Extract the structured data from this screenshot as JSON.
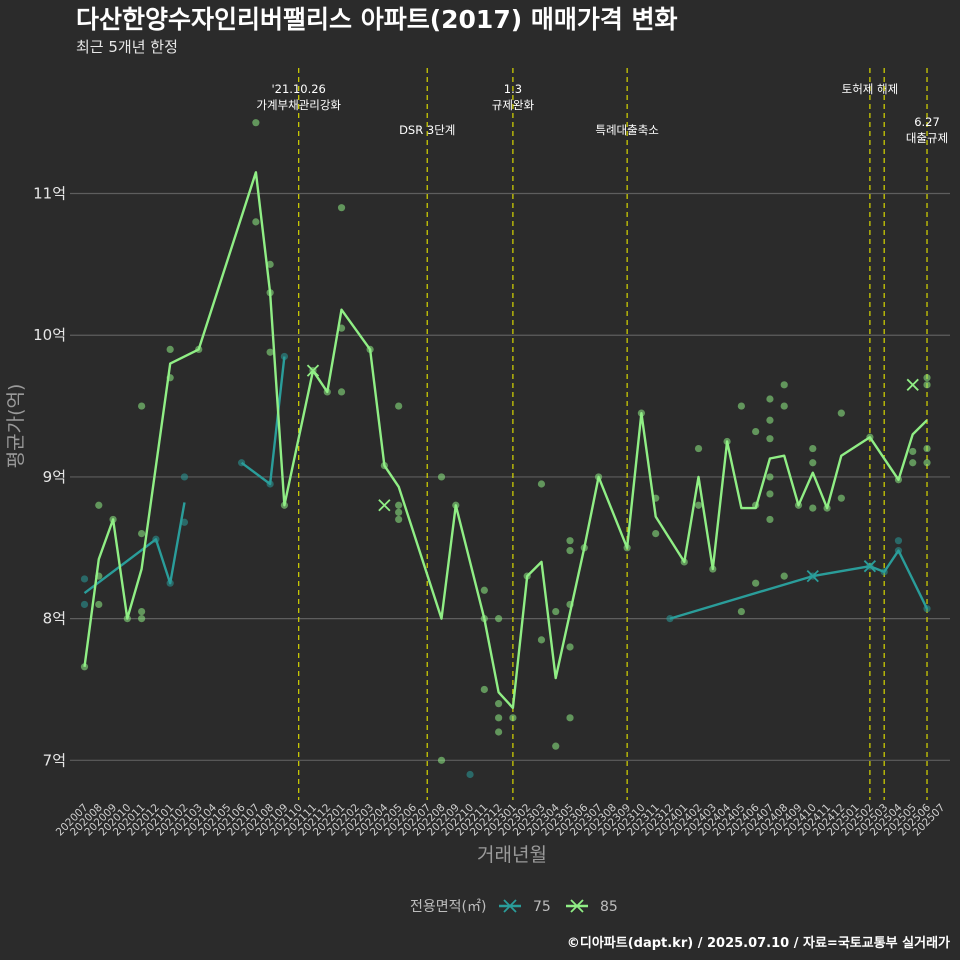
{
  "chart_data": {
    "type": "line",
    "title": "다산한양수자인리버팰리스 아파트(2017) 매매가격 변화",
    "subtitle": "최근 5개년 한정",
    "xlabel": "거래년월",
    "ylabel": "평균가(억)",
    "caption": "©디아파트(dapt.kr) / 2025.07.10 / 자료=국토교통부 실거래가",
    "categories": [
      "202007",
      "202008",
      "202009",
      "202010",
      "202011",
      "202012",
      "202101",
      "202102",
      "202103",
      "202104",
      "202105",
      "202106",
      "202107",
      "202108",
      "202109",
      "202110",
      "202111",
      "202112",
      "202201",
      "202202",
      "202203",
      "202204",
      "202205",
      "202206",
      "202207",
      "202208",
      "202209",
      "202210",
      "202211",
      "202212",
      "202301",
      "202302",
      "202303",
      "202304",
      "202305",
      "202306",
      "202307",
      "202308",
      "202309",
      "202310",
      "202311",
      "202312",
      "202401",
      "202402",
      "202403",
      "202404",
      "202405",
      "202406",
      "202407",
      "202408",
      "202409",
      "202410",
      "202411",
      "202412",
      "202501",
      "202502",
      "202503",
      "202504",
      "202505",
      "202506",
      "202507"
    ],
    "yticks": [
      7,
      8,
      9,
      10,
      11
    ],
    "ytick_labels": [
      "7억",
      "8억",
      "9억",
      "10억",
      "11억"
    ],
    "ylim": [
      6.72,
      11.9
    ],
    "grid": true,
    "legend": {
      "title": "전용면적(㎡)",
      "position": "bottom",
      "items": [
        {
          "label": "75",
          "color": "#2a9d9a"
        },
        {
          "label": "85",
          "color": "#90ee85"
        }
      ]
    },
    "events": [
      {
        "x": "202110",
        "lines": [
          "'21.10.26",
          "가계부채관리강화"
        ],
        "row": 0
      },
      {
        "x": "202207",
        "lines": [
          "DSR 3단계"
        ],
        "row": 1
      },
      {
        "x": "202301",
        "lines": [
          "1.3",
          "규제완화"
        ],
        "row": 0
      },
      {
        "x": "202309",
        "lines": [
          "특례대출축소"
        ],
        "row": 1
      },
      {
        "x": "202502",
        "lines": [
          "토허제 해제"
        ],
        "row": 0
      },
      {
        "x": "202503",
        "lines": [],
        "row": 0
      },
      {
        "x": "202506",
        "lines": [
          "6.27",
          "대출규제"
        ],
        "row": 2
      }
    ],
    "series": [
      {
        "name": "75",
        "color": "#2a9d9a",
        "segments": [
          [
            [
              "202007",
              8.18
            ],
            [
              "202012",
              8.56
            ],
            [
              "202101",
              8.25
            ],
            [
              "202102",
              8.82
            ]
          ],
          [
            [
              "202106",
              9.1
            ],
            [
              "202108",
              8.95
            ],
            [
              "202109",
              9.85
            ]
          ],
          [
            [
              "202312",
              8.0
            ],
            [
              "202410",
              8.3
            ],
            [
              "202502",
              8.37
            ],
            [
              "202503",
              8.33
            ],
            [
              "202504",
              8.48
            ],
            [
              "202506",
              8.07
            ]
          ]
        ],
        "crosses": [
          [
            "202410",
            8.3
          ],
          [
            "202502",
            8.37
          ]
        ],
        "points": [
          [
            "202007",
            8.28
          ],
          [
            "202007",
            8.1
          ],
          [
            "202012",
            8.56
          ],
          [
            "202101",
            8.25
          ],
          [
            "202102",
            9.0
          ],
          [
            "202102",
            8.68
          ],
          [
            "202106",
            9.1
          ],
          [
            "202108",
            8.95
          ],
          [
            "202109",
            9.85
          ],
          [
            "202210",
            6.9
          ],
          [
            "202312",
            8.0
          ],
          [
            "202410",
            8.3
          ],
          [
            "202502",
            8.37
          ],
          [
            "202503",
            8.33
          ],
          [
            "202504",
            8.55
          ],
          [
            "202504",
            8.48
          ],
          [
            "202506",
            8.07
          ]
        ]
      },
      {
        "name": "85",
        "color": "#90ee85",
        "segments": [
          [
            [
              "202007",
              7.66
            ],
            [
              "202008",
              8.42
            ],
            [
              "202009",
              8.7
            ],
            [
              "202010",
              8.0
            ],
            [
              "202011",
              8.35
            ],
            [
              "202101",
              9.8
            ],
            [
              "202103",
              9.9
            ],
            [
              "202107",
              11.15
            ],
            [
              "202108",
              10.3
            ],
            [
              "202109",
              8.8
            ],
            [
              "202111",
              9.75
            ],
            [
              "202112",
              9.6
            ],
            [
              "202201",
              10.18
            ],
            [
              "202203",
              9.9
            ],
            [
              "202204",
              9.08
            ],
            [
              "202205",
              8.93
            ],
            [
              "202208",
              8.0
            ],
            [
              "202209",
              8.8
            ],
            [
              "202211",
              8.0
            ],
            [
              "202212",
              7.48
            ],
            [
              "202301",
              7.37
            ],
            [
              "202302",
              8.3
            ],
            [
              "202303",
              8.4
            ],
            [
              "202304",
              7.58
            ],
            [
              "202306",
              8.5
            ],
            [
              "202307",
              9.0
            ],
            [
              "202309",
              8.5
            ],
            [
              "202310",
              9.45
            ],
            [
              "202311",
              8.72
            ],
            [
              "202401",
              8.4
            ],
            [
              "202402",
              9.0
            ],
            [
              "202403",
              8.35
            ],
            [
              "202404",
              9.25
            ],
            [
              "202405",
              8.78
            ],
            [
              "202406",
              8.78
            ],
            [
              "202407",
              9.13
            ],
            [
              "202408",
              9.15
            ],
            [
              "202409",
              8.8
            ],
            [
              "202410",
              9.03
            ],
            [
              "202411",
              8.78
            ],
            [
              "202412",
              9.15
            ],
            [
              "202502",
              9.28
            ],
            [
              "202504",
              8.98
            ],
            [
              "202505",
              9.3
            ],
            [
              "202506",
              9.4
            ]
          ]
        ],
        "crosses": [
          [
            "202111",
            9.75
          ],
          [
            "202204",
            8.8
          ],
          [
            "202505",
            9.65
          ]
        ],
        "points": [
          [
            "202007",
            7.66
          ],
          [
            "202008",
            8.8
          ],
          [
            "202008",
            8.3
          ],
          [
            "202008",
            8.1
          ],
          [
            "202009",
            8.7
          ],
          [
            "202010",
            8.0
          ],
          [
            "202011",
            9.5
          ],
          [
            "202011",
            8.6
          ],
          [
            "202011",
            8.05
          ],
          [
            "202011",
            8.0
          ],
          [
            "202101",
            9.9
          ],
          [
            "202101",
            9.7
          ],
          [
            "202103",
            9.9
          ],
          [
            "202107",
            11.5
          ],
          [
            "202107",
            10.8
          ],
          [
            "202108",
            10.5
          ],
          [
            "202108",
            10.3
          ],
          [
            "202108",
            9.88
          ],
          [
            "202109",
            8.8
          ],
          [
            "202111",
            9.75
          ],
          [
            "202112",
            9.6
          ],
          [
            "202201",
            10.9
          ],
          [
            "202201",
            10.05
          ],
          [
            "202201",
            9.6
          ],
          [
            "202203",
            9.9
          ],
          [
            "202204",
            9.08
          ],
          [
            "202205",
            9.5
          ],
          [
            "202205",
            8.8
          ],
          [
            "202205",
            8.75
          ],
          [
            "202205",
            8.7
          ],
          [
            "202208",
            9.0
          ],
          [
            "202208",
            7.0
          ],
          [
            "202209",
            8.8
          ],
          [
            "202211",
            8.2
          ],
          [
            "202211",
            8.0
          ],
          [
            "202211",
            7.5
          ],
          [
            "202212",
            8.0
          ],
          [
            "202212",
            7.4
          ],
          [
            "202212",
            7.3
          ],
          [
            "202212",
            7.2
          ],
          [
            "202301",
            7.3
          ],
          [
            "202302",
            8.3
          ],
          [
            "202303",
            8.95
          ],
          [
            "202303",
            7.85
          ],
          [
            "202304",
            8.05
          ],
          [
            "202304",
            7.1
          ],
          [
            "202305",
            8.55
          ],
          [
            "202305",
            8.48
          ],
          [
            "202305",
            8.1
          ],
          [
            "202305",
            7.8
          ],
          [
            "202305",
            7.3
          ],
          [
            "202306",
            8.5
          ],
          [
            "202307",
            9.0
          ],
          [
            "202309",
            8.5
          ],
          [
            "202310",
            9.45
          ],
          [
            "202311",
            8.85
          ],
          [
            "202311",
            8.6
          ],
          [
            "202401",
            8.4
          ],
          [
            "202402",
            9.2
          ],
          [
            "202402",
            8.8
          ],
          [
            "202403",
            8.35
          ],
          [
            "202404",
            9.25
          ],
          [
            "202405",
            9.5
          ],
          [
            "202405",
            8.05
          ],
          [
            "202406",
            9.32
          ],
          [
            "202406",
            8.8
          ],
          [
            "202406",
            8.25
          ],
          [
            "202407",
            9.55
          ],
          [
            "202407",
            9.4
          ],
          [
            "202407",
            9.27
          ],
          [
            "202407",
            9.0
          ],
          [
            "202407",
            8.88
          ],
          [
            "202407",
            8.7
          ],
          [
            "202408",
            9.65
          ],
          [
            "202408",
            9.5
          ],
          [
            "202408",
            8.3
          ],
          [
            "202409",
            8.8
          ],
          [
            "202410",
            9.2
          ],
          [
            "202410",
            9.1
          ],
          [
            "202410",
            8.78
          ],
          [
            "202411",
            8.78
          ],
          [
            "202412",
            9.45
          ],
          [
            "202412",
            8.85
          ],
          [
            "202502",
            9.28
          ],
          [
            "202504",
            8.98
          ],
          [
            "202505",
            9.18
          ],
          [
            "202505",
            9.1
          ],
          [
            "202506",
            9.7
          ],
          [
            "202506",
            9.65
          ],
          [
            "202506",
            9.2
          ],
          [
            "202506",
            9.1
          ]
        ]
      }
    ]
  }
}
